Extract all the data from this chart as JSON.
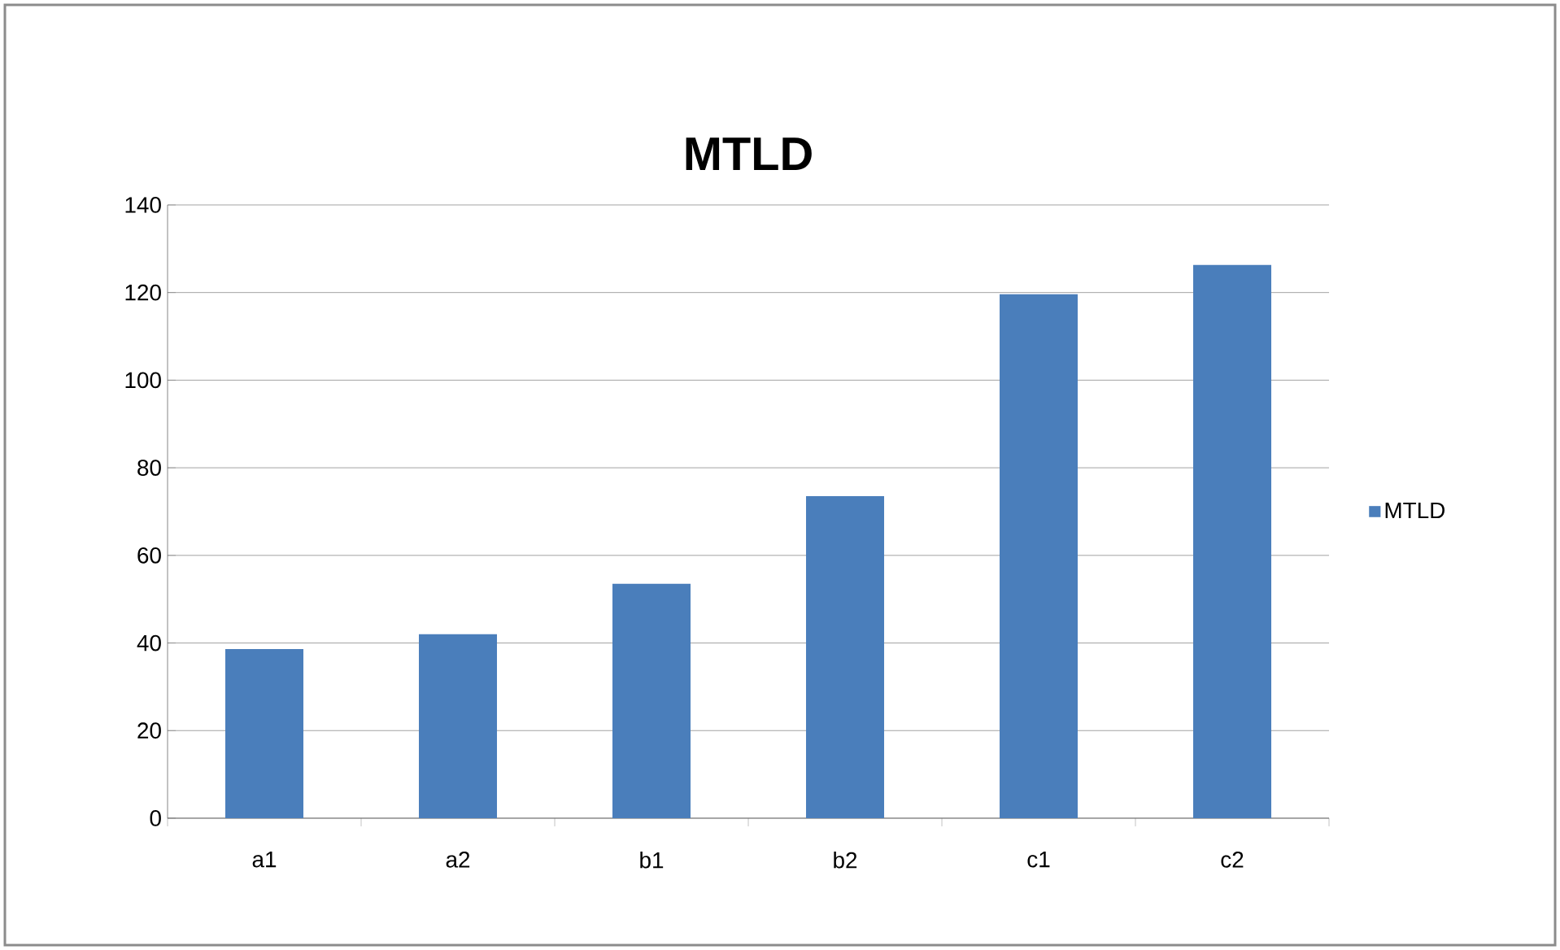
{
  "chart_data": {
    "type": "bar",
    "title": "MTLD",
    "categories": [
      "a1",
      "a2",
      "b1",
      "b2",
      "c1",
      "c2"
    ],
    "series": [
      {
        "name": "MTLD",
        "color": "#4a7ebb",
        "values": [
          38.6,
          42.0,
          53.5,
          73.5,
          119.6,
          126.3
        ]
      }
    ],
    "ylim": [
      0,
      140
    ],
    "yticks": [
      0,
      20,
      40,
      60,
      80,
      100,
      120,
      140
    ],
    "grid": "y",
    "legend": "right"
  }
}
